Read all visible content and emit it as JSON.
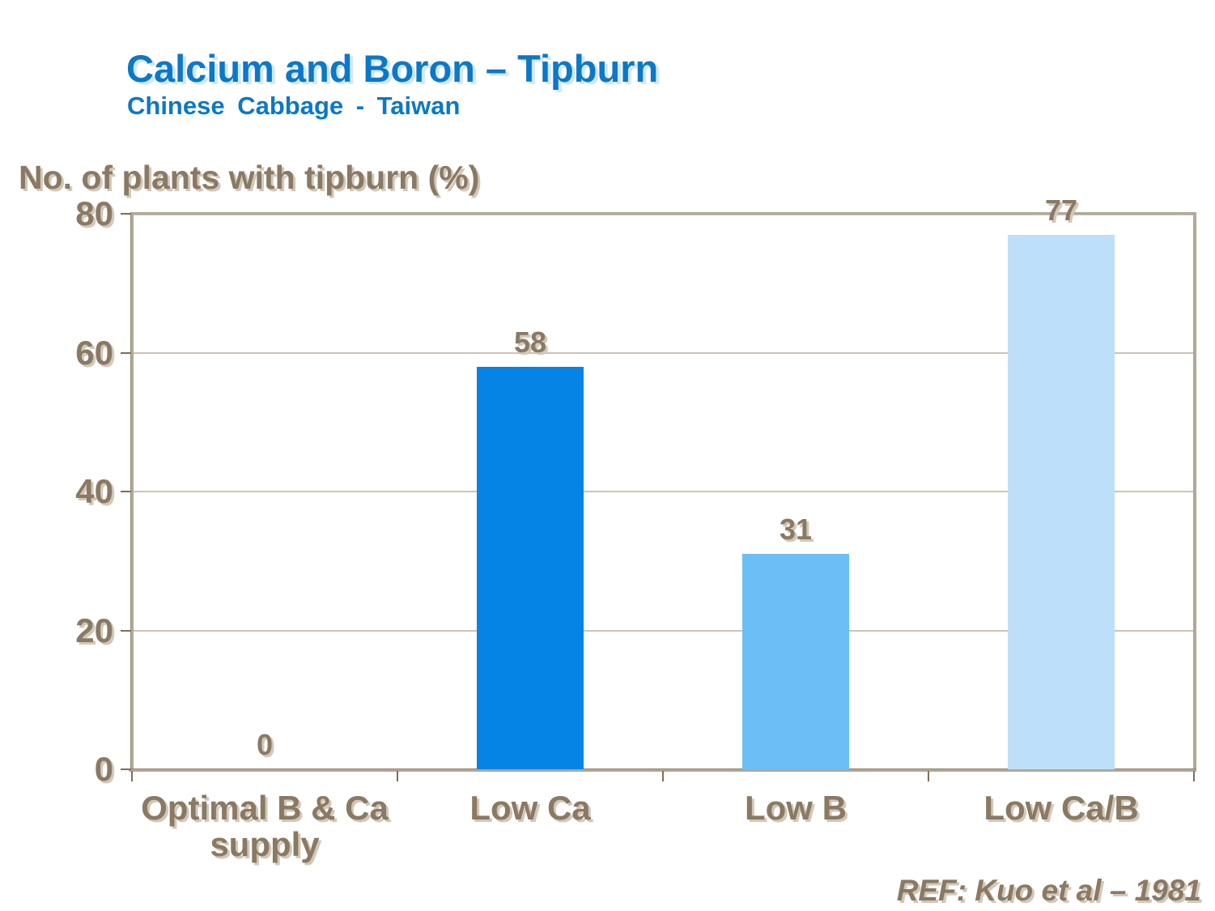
{
  "slide": {
    "title": "Calcium and Boron – Tipburn",
    "subtitle": "Chinese Cabbage - Taiwan",
    "axis_title": "No. of plants with tipburn (%)",
    "reference": "REF: Kuo et al – 1981"
  },
  "colors": {
    "title_blue": "#0b78c8",
    "label_brown": "#8a7963",
    "shadow_tan": "#d2c8ba",
    "axis_tan": "#b3a796",
    "tick_brown": "#7d6e5a",
    "gridline": "#cdc3b6"
  },
  "chart_data": {
    "type": "bar",
    "title": "Calcium and Boron – Tipburn",
    "subtitle": "Chinese Cabbage - Taiwan",
    "ylabel": "No. of plants with tipburn (%)",
    "xlabel": "",
    "categories": [
      "Optimal B & Ca supply",
      "Low Ca",
      "Low B",
      "Low Ca/B"
    ],
    "values": [
      0,
      58,
      31,
      77
    ],
    "data_labels": [
      "0",
      "58",
      "31",
      "77"
    ],
    "bar_colors": [
      "#0684e6",
      "#0684e6",
      "#6cbef7",
      "#bddffa"
    ],
    "ylim": [
      0,
      80
    ],
    "yticks": [
      0,
      20,
      40,
      60,
      80
    ],
    "grid": true,
    "legend": false,
    "annotation": "REF: Kuo et al – 1981"
  }
}
